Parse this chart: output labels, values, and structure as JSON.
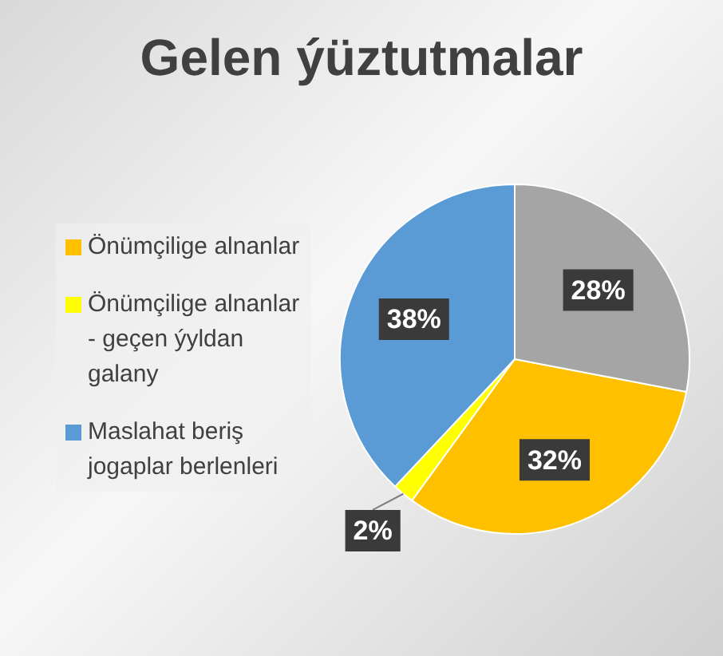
{
  "chart_data": {
    "type": "pie",
    "title": "Gelen ýüztutmalar",
    "categories": [
      "Önümçilige alnanlar",
      "Önümçilige alnanlar - geçen ýyldan galany",
      "Maslahat beriş jogaplar berlenleri",
      null
    ],
    "values": [
      32,
      2,
      38,
      28
    ],
    "colors": [
      "#ffc000",
      "#ffff00",
      "#5b9bd5",
      "#a5a5a5"
    ],
    "value_labels": [
      "32%",
      "2%",
      "38%",
      "28%"
    ],
    "legend": "left"
  }
}
